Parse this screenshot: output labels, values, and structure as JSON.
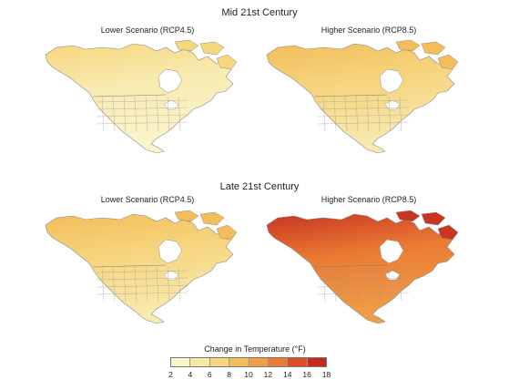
{
  "sections": [
    {
      "title": "Mid 21st Century",
      "panels": [
        {
          "title": "Lower Scenario (RCP4.5)",
          "scheme": "mid-low"
        },
        {
          "title": "Higher Scenario (RCP8.5)",
          "scheme": "mid-high"
        }
      ]
    },
    {
      "title": "Late 21st Century",
      "panels": [
        {
          "title": "Lower Scenario (RCP4.5)",
          "scheme": "late-low"
        },
        {
          "title": "Higher Scenario (RCP8.5)",
          "scheme": "late-high"
        }
      ]
    }
  ],
  "legend": {
    "title": "Change in Temperature (°F)",
    "ticks": [
      "2",
      "4",
      "6",
      "8",
      "10",
      "12",
      "14",
      "16",
      "18"
    ],
    "colors": [
      "#fbf5c9",
      "#f7e8a3",
      "#f5d67c",
      "#f3bd5a",
      "#f09e47",
      "#ea7b33",
      "#de4f27",
      "#c42a1c"
    ]
  },
  "schemes": {
    "mid-low": {
      "north": "#f6d77c",
      "mid": "#f8eab0",
      "south": "#fbf5cc"
    },
    "mid-high": {
      "north": "#f3bd5a",
      "mid": "#f6d57e",
      "south": "#f8eab0"
    },
    "late-low": {
      "north": "#f3bd5a",
      "mid": "#f6d57e",
      "south": "#f8eab0"
    },
    "late-high": {
      "north": "#c93423",
      "mid": "#ea7b33",
      "south": "#f09e47"
    }
  }
}
